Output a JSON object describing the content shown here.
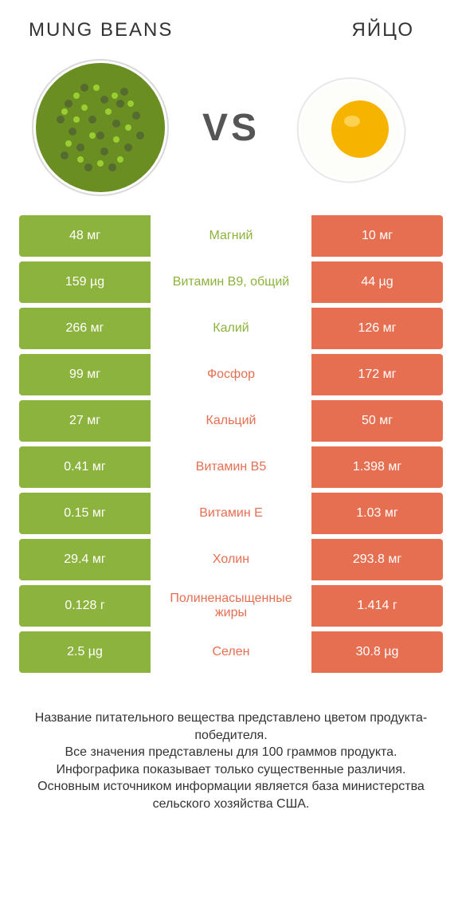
{
  "colors": {
    "left": "#8db33f",
    "right": "#e76f51",
    "bg": "#ffffff",
    "text": "#333333"
  },
  "header": {
    "left_title": "MUNG BEANS",
    "right_title": "ЯЙЦО",
    "vs": "VS"
  },
  "rows": [
    {
      "left": "48 мг",
      "mid": "Магний",
      "right": "10 мг",
      "winner": "left"
    },
    {
      "left": "159 µg",
      "mid": "Витамин B9, общий",
      "right": "44 µg",
      "winner": "left"
    },
    {
      "left": "266 мг",
      "mid": "Калий",
      "right": "126 мг",
      "winner": "left"
    },
    {
      "left": "99 мг",
      "mid": "Фосфор",
      "right": "172 мг",
      "winner": "right"
    },
    {
      "left": "27 мг",
      "mid": "Кальций",
      "right": "50 мг",
      "winner": "right"
    },
    {
      "left": "0.41 мг",
      "mid": "Витамин B5",
      "right": "1.398 мг",
      "winner": "right"
    },
    {
      "left": "0.15 мг",
      "mid": "Витамин E",
      "right": "1.03 мг",
      "winner": "right"
    },
    {
      "left": "29.4 мг",
      "mid": "Холин",
      "right": "293.8 мг",
      "winner": "right"
    },
    {
      "left": "0.128 г",
      "mid": "Полиненасыщенные жиры",
      "right": "1.414 г",
      "winner": "right"
    },
    {
      "left": "2.5 µg",
      "mid": "Селен",
      "right": "30.8 µg",
      "winner": "right"
    }
  ],
  "footer": "Название питательного вещества представлено цветом продукта-победителя.\nВсе значения представлены для 100 граммов продукта.\nИнфографика показывает только существенные различия.\nОсновным источником информации является база министерства сельского хозяйства США."
}
